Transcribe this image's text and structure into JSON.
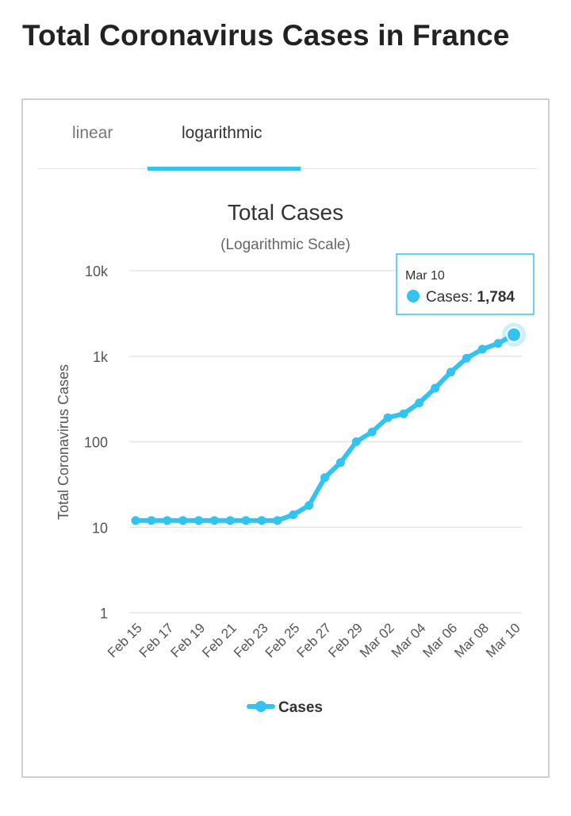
{
  "page": {
    "title": "Total Coronavirus Cases in France"
  },
  "tabs": [
    {
      "label": "linear",
      "active": false
    },
    {
      "label": "logarithmic",
      "active": true
    }
  ],
  "tooltip": {
    "date": "Mar 10",
    "series_label": "Cases:",
    "value": "1,784"
  },
  "colors": {
    "series": "#33c3f0",
    "grid": "#e6e6e6",
    "text": "#333333"
  },
  "chart_data": {
    "type": "line",
    "title": "Total Cases",
    "subtitle": "(Logarithmic Scale)",
    "ylabel": "Total Coronavirus Cases",
    "xlabel": "",
    "y_scale": "log",
    "ylim": [
      1,
      10000
    ],
    "y_ticks": [
      {
        "value": 1,
        "label": "1"
      },
      {
        "value": 10,
        "label": "10"
      },
      {
        "value": 100,
        "label": "100"
      },
      {
        "value": 1000,
        "label": "1k"
      },
      {
        "value": 10000,
        "label": "10k"
      }
    ],
    "x": [
      "Feb 15",
      "Feb 16",
      "Feb 17",
      "Feb 18",
      "Feb 19",
      "Feb 20",
      "Feb 21",
      "Feb 22",
      "Feb 23",
      "Feb 24",
      "Feb 25",
      "Feb 26",
      "Feb 27",
      "Feb 28",
      "Feb 29",
      "Mar 01",
      "Mar 02",
      "Mar 03",
      "Mar 04",
      "Mar 05",
      "Mar 06",
      "Mar 07",
      "Mar 08",
      "Mar 09",
      "Mar 10"
    ],
    "x_tick_labels": [
      "Feb 15",
      "Feb 17",
      "Feb 19",
      "Feb 21",
      "Feb 23",
      "Feb 25",
      "Feb 27",
      "Feb 29",
      "Mar 02",
      "Mar 04",
      "Mar 06",
      "Mar 08",
      "Mar 10"
    ],
    "series": [
      {
        "name": "Cases",
        "values": [
          12,
          12,
          12,
          12,
          12,
          12,
          12,
          12,
          12,
          12,
          14,
          18,
          38,
          57,
          100,
          130,
          191,
          212,
          285,
          423,
          653,
          949,
          1209,
          1412,
          1784
        ]
      }
    ],
    "legend": "bottom-center",
    "grid": true
  }
}
